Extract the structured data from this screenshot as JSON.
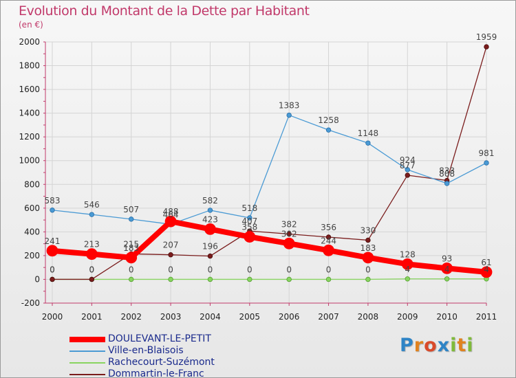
{
  "title": "Evolution du Montant de la Dette par Habitant",
  "unit_label": "(en €)",
  "logo": {
    "letters": [
      "P",
      "r",
      "o",
      "x",
      "i",
      "t",
      "i"
    ],
    "colors": [
      "#2e84c6",
      "#e0821f",
      "#d94a2a",
      "#2e84c6",
      "#7fba3a",
      "#e0821f",
      "#7fba3a"
    ]
  },
  "chart_data": {
    "type": "line",
    "title": "Evolution du Montant de la Dette par Habitant",
    "ylabel": "(en €)",
    "x": [
      "2000",
      "2001",
      "2002",
      "2003",
      "2004",
      "2005",
      "2006",
      "2007",
      "2008",
      "2009",
      "2010",
      "2011"
    ],
    "ylim": [
      -200,
      2000
    ],
    "yticks": [
      "-200",
      "0",
      "200",
      "400",
      "600",
      "800",
      "1000",
      "1200",
      "1400",
      "1600",
      "1800",
      "2000"
    ],
    "legend_position": "bottom-left",
    "series": [
      {
        "name": "DOULEVANT-LE-PETIT",
        "color": "#ff0000",
        "values": [
          241,
          213,
          183,
          488,
          423,
          358,
          302,
          244,
          183,
          128,
          93,
          61
        ],
        "labels": [
          "241",
          "213",
          "183",
          "488",
          "423",
          "358",
          "302",
          "244",
          "183",
          "128",
          "93",
          "61"
        ]
      },
      {
        "name": "Ville-en-Blaisois",
        "color": "#4a9ad4",
        "values": [
          583,
          546,
          507,
          464,
          582,
          518,
          1383,
          1258,
          1148,
          924,
          808,
          981
        ],
        "labels": [
          "583",
          "546",
          "507",
          "464",
          "582",
          "518",
          "1383",
          "1258",
          "1148",
          "924",
          "808",
          "981"
        ]
      },
      {
        "name": "Rachecourt-Suzémont",
        "color": "#88d460",
        "values": [
          0,
          0,
          0,
          0,
          0,
          0,
          0,
          0,
          0,
          4,
          4,
          4
        ],
        "labels": [
          "0",
          "0",
          "0",
          "0",
          "0",
          "0",
          "0",
          "0",
          "0",
          "4",
          "4",
          "4"
        ]
      },
      {
        "name": "Dommartin-le-Franc",
        "color": "#7a1c1c",
        "values": [
          0,
          0,
          215,
          207,
          196,
          407,
          382,
          356,
          330,
          877,
          833,
          1959
        ],
        "labels": [
          "0",
          "0",
          "215",
          "207",
          "196",
          "407",
          "382",
          "356",
          "330",
          "877",
          "833",
          "1959"
        ]
      }
    ]
  }
}
